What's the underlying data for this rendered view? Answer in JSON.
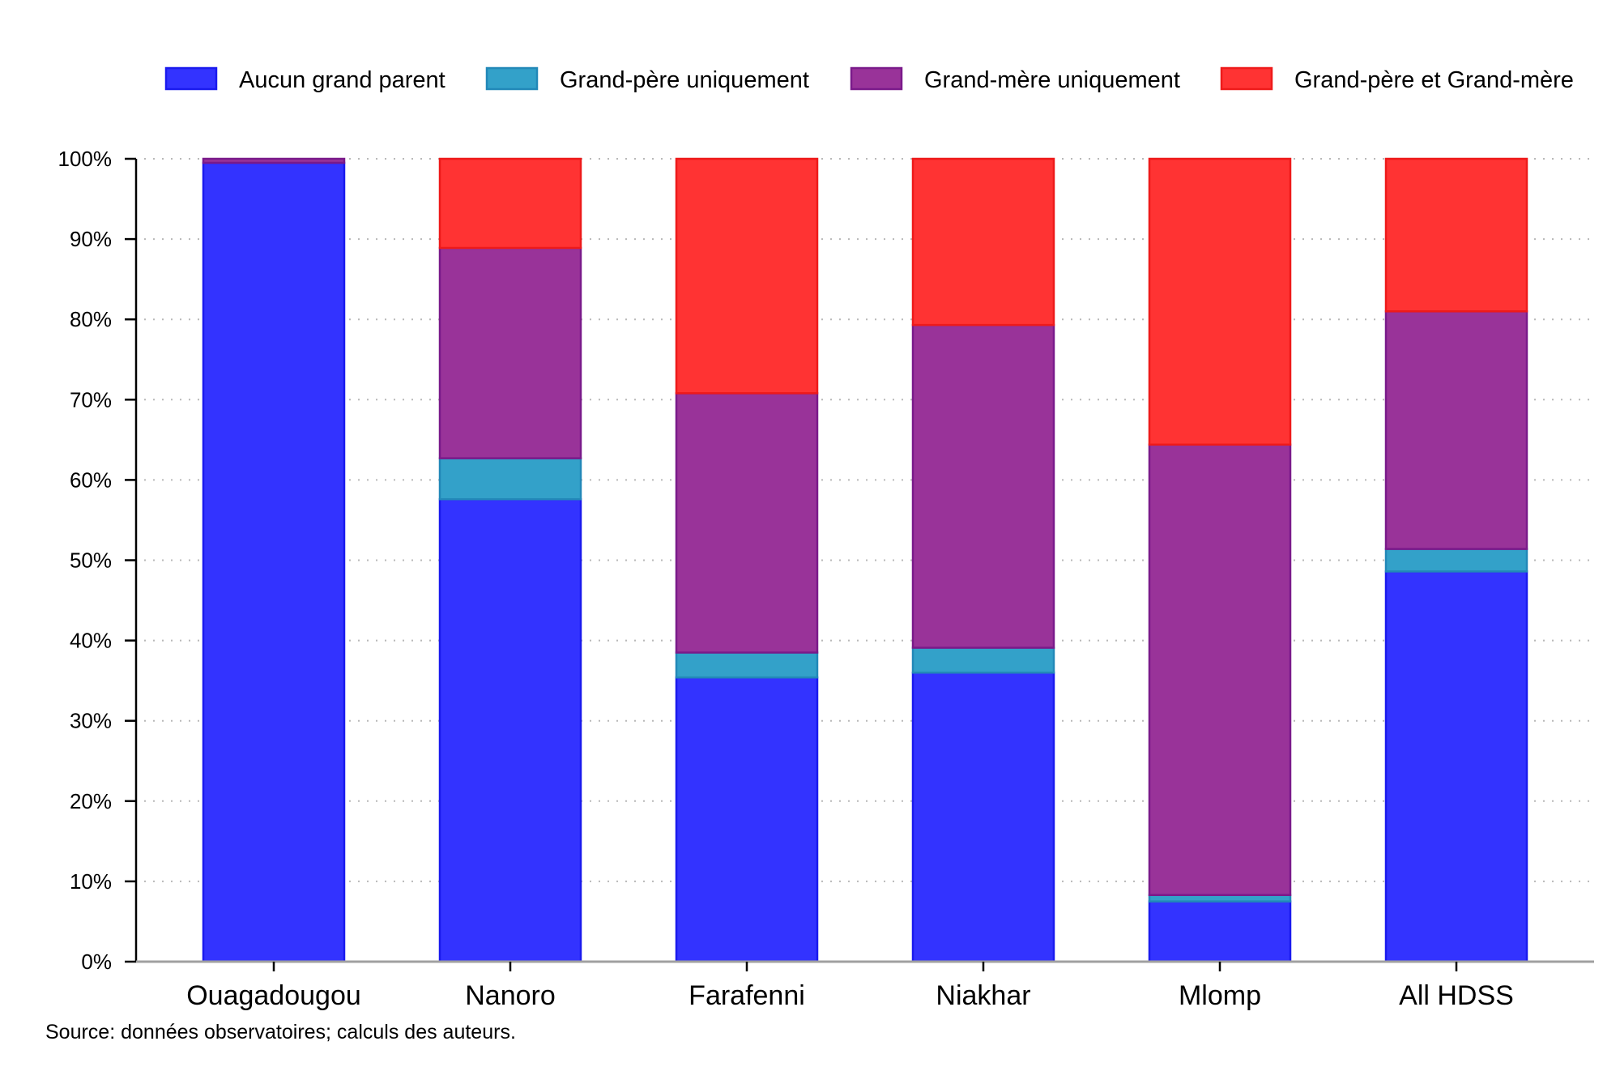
{
  "chart_data": {
    "type": "bar",
    "stacked": true,
    "percent": true,
    "title": "",
    "xlabel": "",
    "ylabel": "",
    "ylim": [
      0,
      100
    ],
    "yticks": [
      0,
      10,
      20,
      30,
      40,
      50,
      60,
      70,
      80,
      90,
      100
    ],
    "ytick_labels": [
      "0%",
      "10%",
      "20%",
      "30%",
      "40%",
      "50%",
      "60%",
      "70%",
      "80%",
      "90%",
      "100%"
    ],
    "grid": "horizontal-dotted",
    "legend_position": "top",
    "categories": [
      "Ouagadougou",
      "Nanoro",
      "Farafenni",
      "Niakhar",
      "Mlomp",
      "All HDSS"
    ],
    "series": [
      {
        "name": "Aucun grand parent",
        "color": "#3333ff",
        "edge": "#1a1aee",
        "values": [
          99.5,
          57.6,
          35.4,
          36.0,
          7.5,
          48.6
        ]
      },
      {
        "name": "Grand-père uniquement",
        "color": "#33a1c9",
        "edge": "#2288b8",
        "values": [
          0.0,
          5.1,
          3.1,
          3.1,
          0.8,
          2.8
        ]
      },
      {
        "name": "Grand-mère uniquement",
        "color": "#993399",
        "edge": "#7a1a8a",
        "values": [
          0.5,
          26.2,
          32.3,
          40.2,
          56.1,
          29.6
        ]
      },
      {
        "name": "Grand-père et Grand-mère",
        "color": "#ff3333",
        "edge": "#ee1a1a",
        "values": [
          0.0,
          11.1,
          29.2,
          20.7,
          35.6,
          19.0
        ]
      }
    ],
    "source_note": "Source: données observatoires; calculs des auteurs."
  }
}
